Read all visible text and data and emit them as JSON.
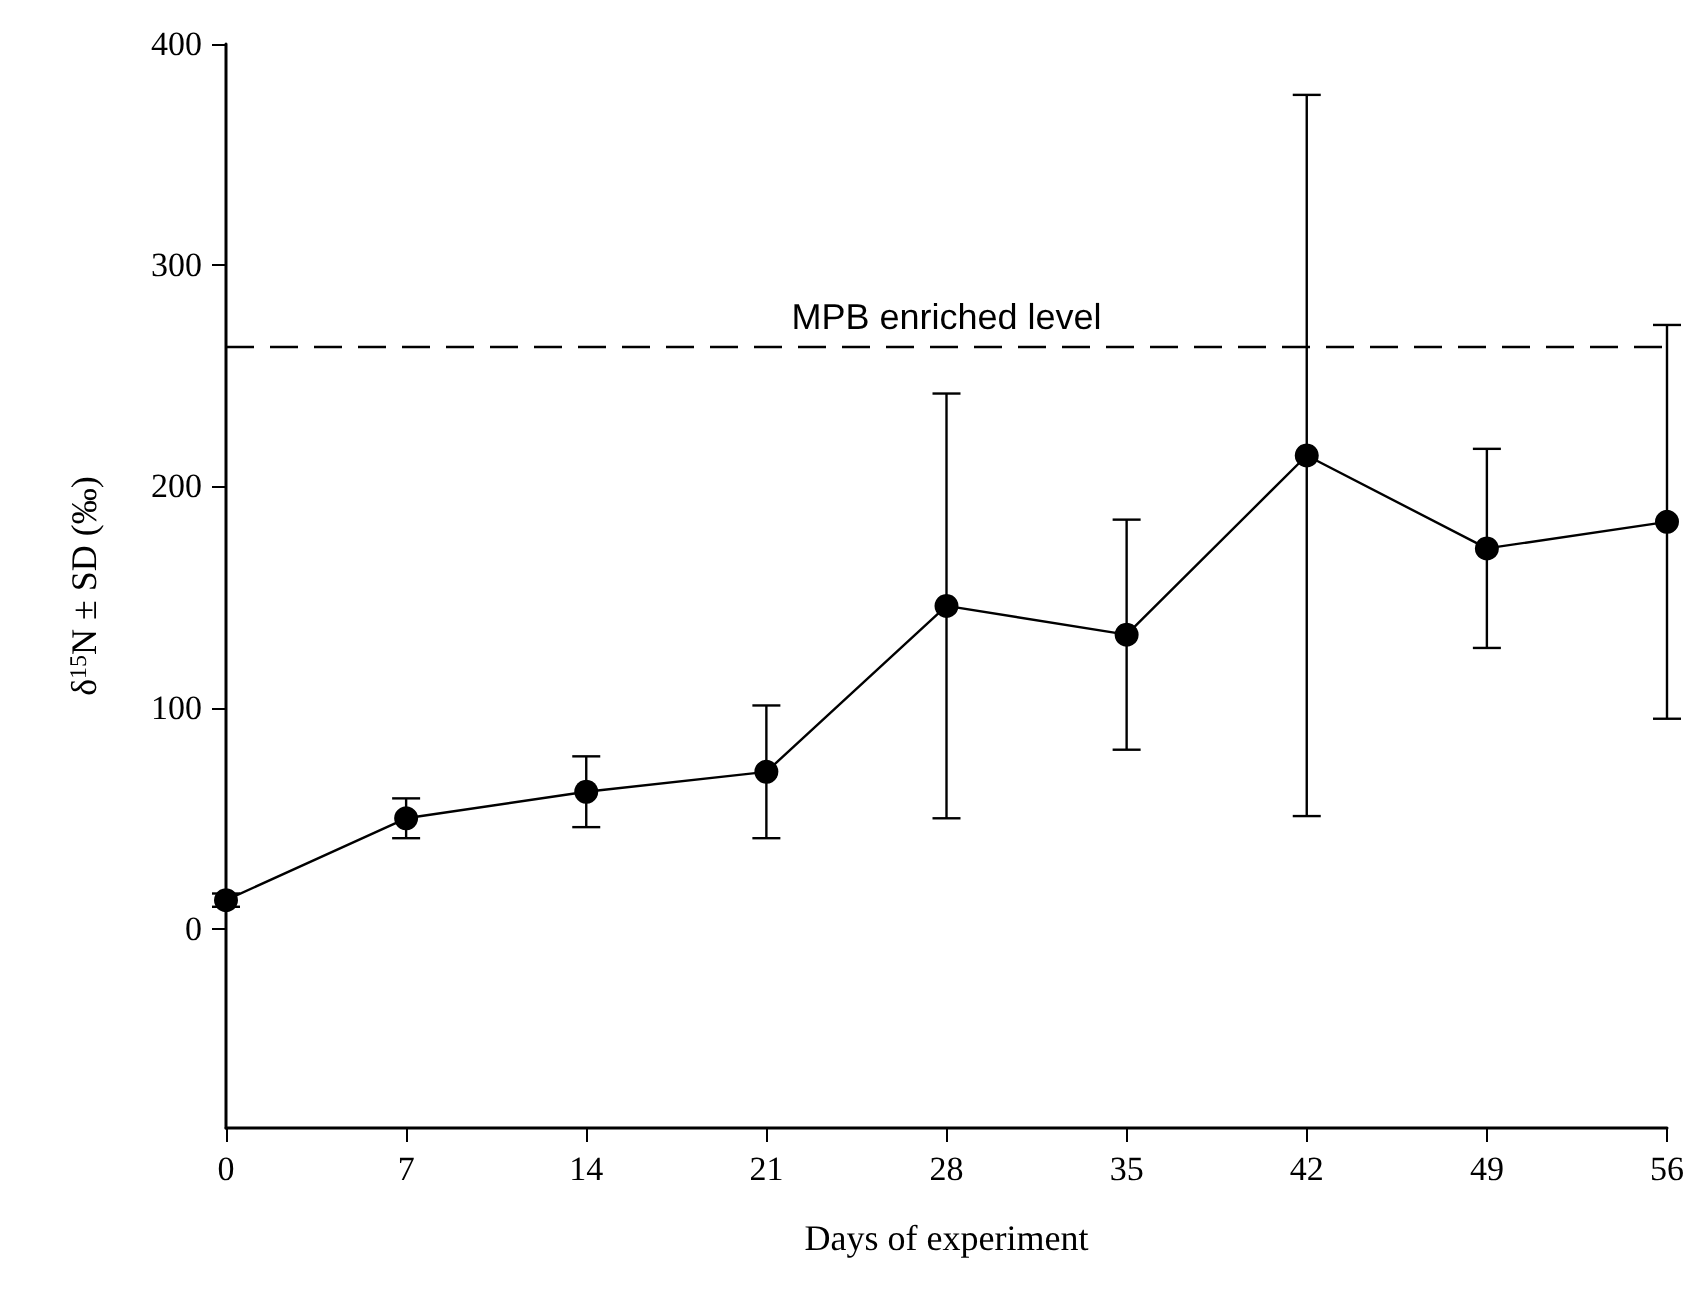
{
  "chart_data": {
    "type": "line",
    "xlabel": "Days of experiment",
    "ylabel": "δ$^{15}$N ± SD (‰)",
    "x": [
      0,
      7,
      14,
      21,
      28,
      35,
      42,
      49,
      56
    ],
    "series": [
      {
        "color": "#000000",
        "values": [
          13,
          50,
          62,
          71,
          146,
          133,
          214,
          172,
          184
        ],
        "errors": [
          3,
          9,
          16,
          30,
          96,
          52,
          163,
          45,
          89
        ]
      }
    ],
    "xlim": [
      0,
      56
    ],
    "xticks": [
      0,
      7,
      14,
      21,
      28,
      35,
      42,
      49,
      56
    ],
    "ylim": [
      -90,
      400
    ],
    "yticks": [
      0,
      100,
      200,
      300,
      400
    ],
    "ref_lines": [
      {
        "axis": "y",
        "value": 263,
        "label": "MPB enriched level",
        "color": "#000000",
        "line_style": "dashed"
      }
    ],
    "grid": false,
    "marker": "circle",
    "line_style": "solid"
  }
}
